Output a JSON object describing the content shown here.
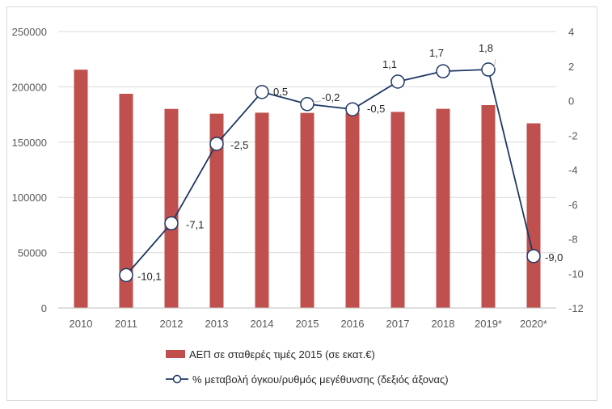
{
  "chart_data": {
    "type": "bar+line",
    "categories": [
      "2010",
      "2011",
      "2012",
      "2013",
      "2014",
      "2015",
      "2016",
      "2017",
      "2018",
      "2019*",
      "2020*"
    ],
    "series": [
      {
        "name": "ΑΕΠ σε σταθερές τιμές 2015 (σε εκατ.€)",
        "type": "bar",
        "axis": "left",
        "color": "#c0504d",
        "values": [
          215500,
          193700,
          180000,
          175700,
          176600,
          176400,
          176500,
          177300,
          180100,
          183500,
          167000
        ]
      },
      {
        "name": "% μεταβολή όγκου/ρυθμός μεγέθυνσης (δεξιός άξονας)",
        "type": "line",
        "axis": "right",
        "color": "#1f3864",
        "values": [
          null,
          -10.1,
          -7.1,
          -2.5,
          0.5,
          -0.2,
          -0.5,
          1.1,
          1.7,
          1.8,
          -9.0
        ],
        "labels": [
          "",
          "-10,1",
          "-7,1",
          "-2,5",
          "0,5",
          "-0,2",
          "-0,5",
          "1,1",
          "1,7",
          "1,8",
          "-9,0"
        ]
      }
    ],
    "left_axis": {
      "ylim": [
        0,
        250000
      ],
      "ticks": [
        0,
        50000,
        100000,
        150000,
        200000,
        250000
      ],
      "tick_labels": [
        "0",
        "50000",
        "100000",
        "150000",
        "200000",
        "250000"
      ]
    },
    "right_axis": {
      "ylim": [
        -12,
        4
      ],
      "ticks": [
        -12,
        -10,
        -8,
        -6,
        -4,
        -2,
        0,
        2,
        4
      ],
      "tick_labels": [
        "-12",
        "-10",
        "-8",
        "-6",
        "-4",
        "-2",
        "0",
        "2",
        "4"
      ]
    },
    "grid": true,
    "legend_position": "bottom"
  }
}
